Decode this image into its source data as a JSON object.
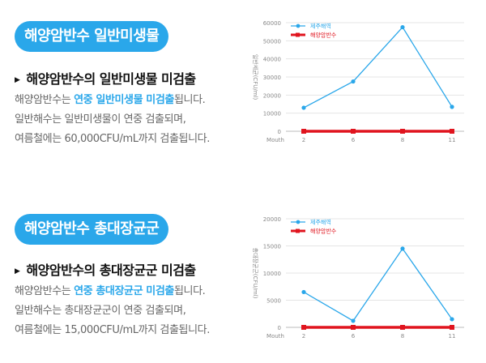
{
  "sections": [
    {
      "badge": "해양암반수 일반미생물",
      "heading": "해양암반수의 일반미생물 미검출",
      "desc_line1_pre": "해양암반수는 ",
      "desc_line1_hl": "연중 일반미생물 미검출",
      "desc_line1_post": "됩니다.",
      "desc_line2": "일반해수는 일반미생물이 연중 검출되며,",
      "desc_line3": "여름철에는 60,000CFU/mL까지 검출됩니다."
    },
    {
      "badge": "해양암반수 총대장균군",
      "heading": "해양암반수의 총대장균군 미검출",
      "desc_line1_pre": "해양암반수는 ",
      "desc_line1_hl": "연중 총대장균군 미검출",
      "desc_line1_post": "됩니다.",
      "desc_line2": "일반해수는 총대장균군이 연중 검출되며,",
      "desc_line3": "여름철에는 15,000CFU/mL까지 검출됩니다."
    }
  ],
  "chart_data": [
    {
      "type": "line",
      "categories": [
        "2",
        "6",
        "8",
        "11"
      ],
      "xlabel": "Mouth",
      "ylabel": "일반세균(CFU/ml)",
      "ylim": [
        0,
        60000
      ],
      "yticks": [
        0,
        10000,
        20000,
        30000,
        40000,
        50000,
        60000
      ],
      "legend_position": "top-left",
      "series": [
        {
          "name": "제주해역",
          "values": [
            13000,
            27500,
            57500,
            13500
          ],
          "color": "#2aa7ea"
        },
        {
          "name": "해양암반수",
          "values": [
            0,
            0,
            0,
            0
          ],
          "color": "#e0141e"
        }
      ]
    },
    {
      "type": "line",
      "categories": [
        "2",
        "6",
        "8",
        "11"
      ],
      "xlabel": "Mouth",
      "ylabel": "총대장균군(CFU/ml)",
      "ylim": [
        0,
        20000
      ],
      "yticks": [
        0,
        5000,
        10000,
        15000,
        20000
      ],
      "legend_position": "top-left",
      "series": [
        {
          "name": "제주해역",
          "values": [
            6500,
            1200,
            14500,
            1500
          ],
          "color": "#2aa7ea"
        },
        {
          "name": "해양암반수",
          "values": [
            0,
            0,
            0,
            0
          ],
          "color": "#e0141e"
        }
      ]
    }
  ]
}
